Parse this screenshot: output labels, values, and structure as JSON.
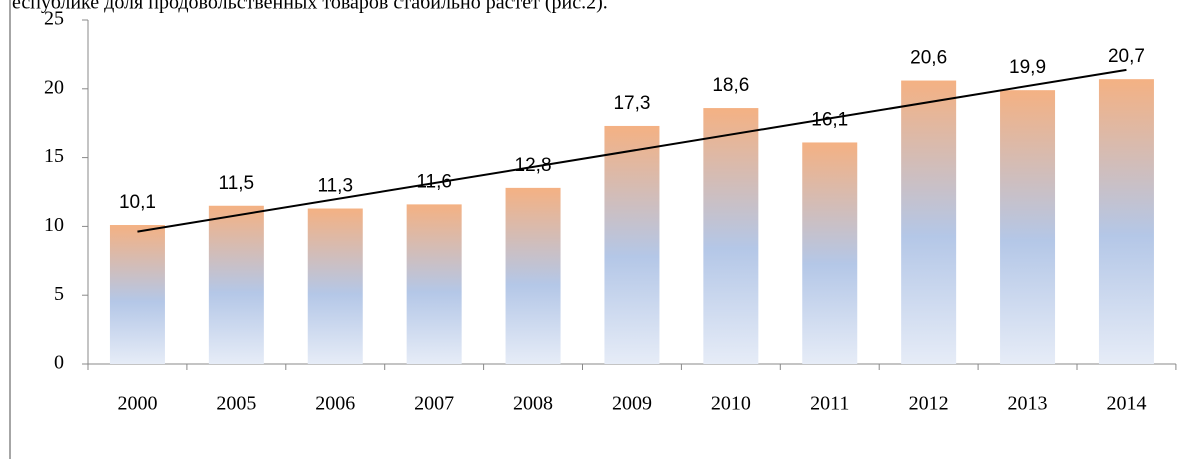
{
  "caption_text": "еспублике доля продовольственных товаров стабильно растет (рис.2).",
  "chart_data": {
    "type": "bar",
    "categories": [
      "2000",
      "2005",
      "2006",
      "2007",
      "2008",
      "2009",
      "2010",
      "2011",
      "2012",
      "2013",
      "2014"
    ],
    "values": [
      10.1,
      11.5,
      11.3,
      11.6,
      12.8,
      17.3,
      18.6,
      16.1,
      20.6,
      19.9,
      20.7
    ],
    "value_labels": [
      "10,1",
      "11,5",
      "11,3",
      "11,6",
      "12,8",
      "17,3",
      "18,6",
      "16,1",
      "20,6",
      "19,9",
      "20,7"
    ],
    "ylim": [
      0,
      25
    ],
    "yticks": [
      0,
      5,
      10,
      15,
      20,
      25
    ],
    "colors": [
      "#f4b183",
      "#b4c7e7",
      "#e6ecf7"
    ],
    "trendline": "linear",
    "trend_color": "#000000"
  }
}
